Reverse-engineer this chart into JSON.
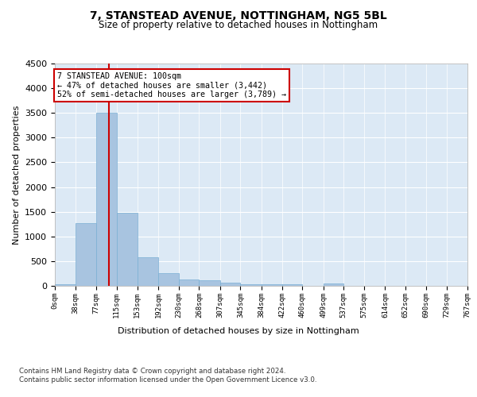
{
  "title": "7, STANSTEAD AVENUE, NOTTINGHAM, NG5 5BL",
  "subtitle": "Size of property relative to detached houses in Nottingham",
  "xlabel": "Distribution of detached houses by size in Nottingham",
  "ylabel": "Number of detached properties",
  "bar_edges": [
    0,
    38,
    77,
    115,
    153,
    192,
    230,
    268,
    307,
    345,
    384,
    422,
    460,
    499,
    537,
    575,
    614,
    652,
    690,
    729,
    767
  ],
  "bar_heights": [
    30,
    1270,
    3500,
    1480,
    580,
    255,
    130,
    115,
    65,
    40,
    25,
    40,
    0,
    55,
    0,
    0,
    0,
    0,
    0,
    0
  ],
  "bar_color": "#a8c4e0",
  "bar_edge_color": "#7aafd4",
  "vline_x": 100,
  "vline_color": "#cc0000",
  "annotation_text": "7 STANSTEAD AVENUE: 100sqm\n← 47% of detached houses are smaller (3,442)\n52% of semi-detached houses are larger (3,789) →",
  "annotation_box_color": "#cc0000",
  "ylim": [
    0,
    4500
  ],
  "yticks": [
    0,
    500,
    1000,
    1500,
    2000,
    2500,
    3000,
    3500,
    4000,
    4500
  ],
  "background_color": "#dce9f5",
  "footer_line1": "Contains HM Land Registry data © Crown copyright and database right 2024.",
  "footer_line2": "Contains public sector information licensed under the Open Government Licence v3.0."
}
